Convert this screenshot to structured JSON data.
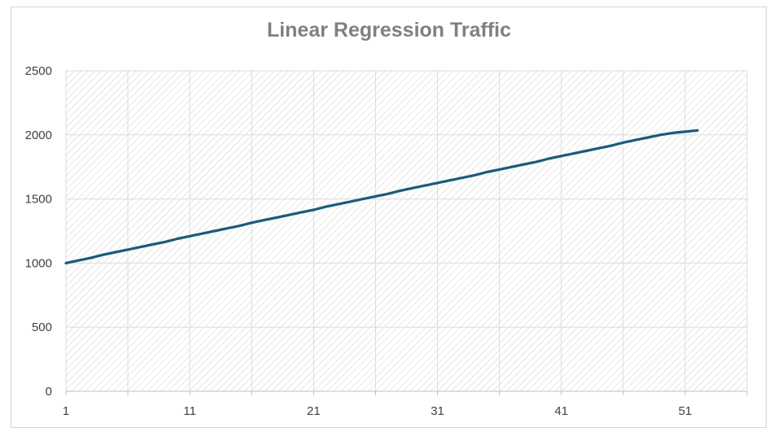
{
  "colors": {
    "series_line": "#1b5a7c",
    "gridline": "#dcdcdc",
    "hatch": "#cfcfcf",
    "axis": "#bfbfbf",
    "title": "#808080",
    "tick_text": "#404040"
  },
  "chart_data": {
    "type": "line",
    "title": "Linear Regression Traffic",
    "xlabel": "",
    "ylabel": "",
    "xlim": [
      1,
      56
    ],
    "ylim": [
      0,
      2500
    ],
    "x_ticks": [
      1,
      11,
      21,
      31,
      41,
      51
    ],
    "y_ticks": [
      0,
      500,
      1000,
      1500,
      2000,
      2500
    ],
    "grid": true,
    "legend": "none",
    "series": [
      {
        "x": [
          1,
          2,
          3,
          4,
          5,
          6,
          7,
          8,
          9,
          10,
          11,
          12,
          13,
          14,
          15,
          16,
          17,
          18,
          19,
          20,
          21,
          22,
          23,
          24,
          25,
          26,
          27,
          28,
          29,
          30,
          31,
          32,
          33,
          34,
          35,
          36,
          37,
          38,
          39,
          40,
          41,
          42,
          43,
          44,
          45,
          46,
          47,
          48,
          49,
          50,
          51,
          52
        ],
        "values": [
          1000,
          1020,
          1040,
          1065,
          1085,
          1105,
          1125,
          1145,
          1165,
          1190,
          1210,
          1230,
          1250,
          1270,
          1290,
          1315,
          1335,
          1355,
          1375,
          1395,
          1415,
          1440,
          1460,
          1480,
          1500,
          1520,
          1540,
          1565,
          1585,
          1605,
          1625,
          1645,
          1665,
          1685,
          1710,
          1730,
          1750,
          1770,
          1790,
          1815,
          1835,
          1855,
          1875,
          1895,
          1915,
          1940,
          1960,
          1980,
          2000,
          2015,
          2025,
          2035
        ]
      }
    ]
  }
}
